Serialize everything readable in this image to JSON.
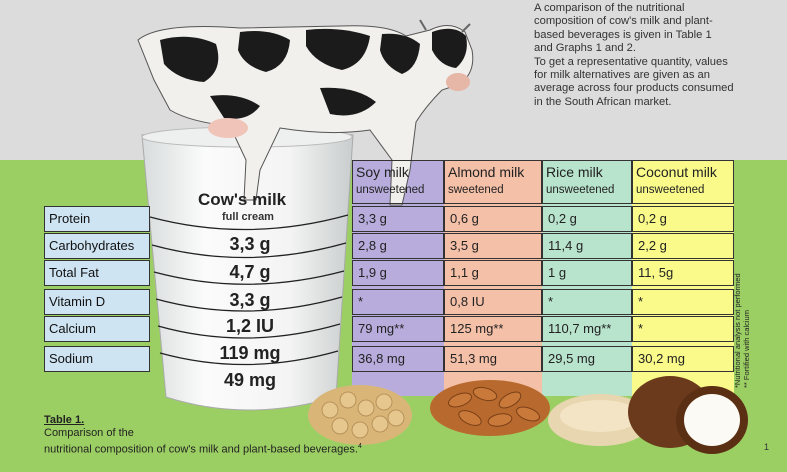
{
  "intro": {
    "line1": "A  comparison of the nutritional",
    "line2": "composition of cow's milk and plant-",
    "line3": "based beverages is given in Table 1",
    "line4": "and Graphs 1 and 2.",
    "line5": "To get a representative quantity, values",
    "line6": "for milk alternatives are given as an",
    "line7": "average across four products consumed",
    "line8": "in the South African market."
  },
  "cows_milk": {
    "title": "Cow's milk",
    "subtitle": "full cream",
    "values": [
      "3,3 g",
      "4,7 g",
      "3,3 g",
      "1,2 IU",
      "119 mg",
      "49 mg"
    ]
  },
  "row_labels": [
    "Protein",
    "Carbohydrates",
    "Total Fat",
    "Vitamin D",
    "Calcium",
    "Sodium"
  ],
  "columns": [
    {
      "name": "Soy milk",
      "sub": "unsweetened",
      "color": "#b8acdc",
      "values": [
        "3,3 g",
        "2,8 g",
        "1,9 g",
        "*",
        "79 mg**",
        "36,8 mg"
      ]
    },
    {
      "name": "Almond milk",
      "sub": "sweetened",
      "color": "#f4c0a8",
      "values": [
        "0,6 g",
        "3,5 g",
        "1,1 g",
        "0,8 IU",
        "125 mg**",
        "51,3 mg"
      ]
    },
    {
      "name": "Rice milk",
      "sub": "unsweetened",
      "color": "#b8e3cc",
      "values": [
        "0,2 g",
        "11,4 g",
        "1 g",
        "*",
        "110,7 mg**",
        "29,5 mg"
      ]
    },
    {
      "name": "Coconut milk",
      "sub": "unsweetened",
      "color": "#fafa8a",
      "values": [
        "0,2 g",
        "2,2 g",
        "11, 5g",
        "*",
        "*",
        "30,2 mg"
      ]
    }
  ],
  "footnotes": {
    "line1": "*Nutritional analysis not performed",
    "line2": "** Fortified with calcium"
  },
  "caption": {
    "title": "Table 1.",
    "line1": "Comparison of the",
    "line2": "nutritional composition of cow's milk and plant-based beverages.",
    "superscript": "4"
  },
  "page_number": "1"
}
